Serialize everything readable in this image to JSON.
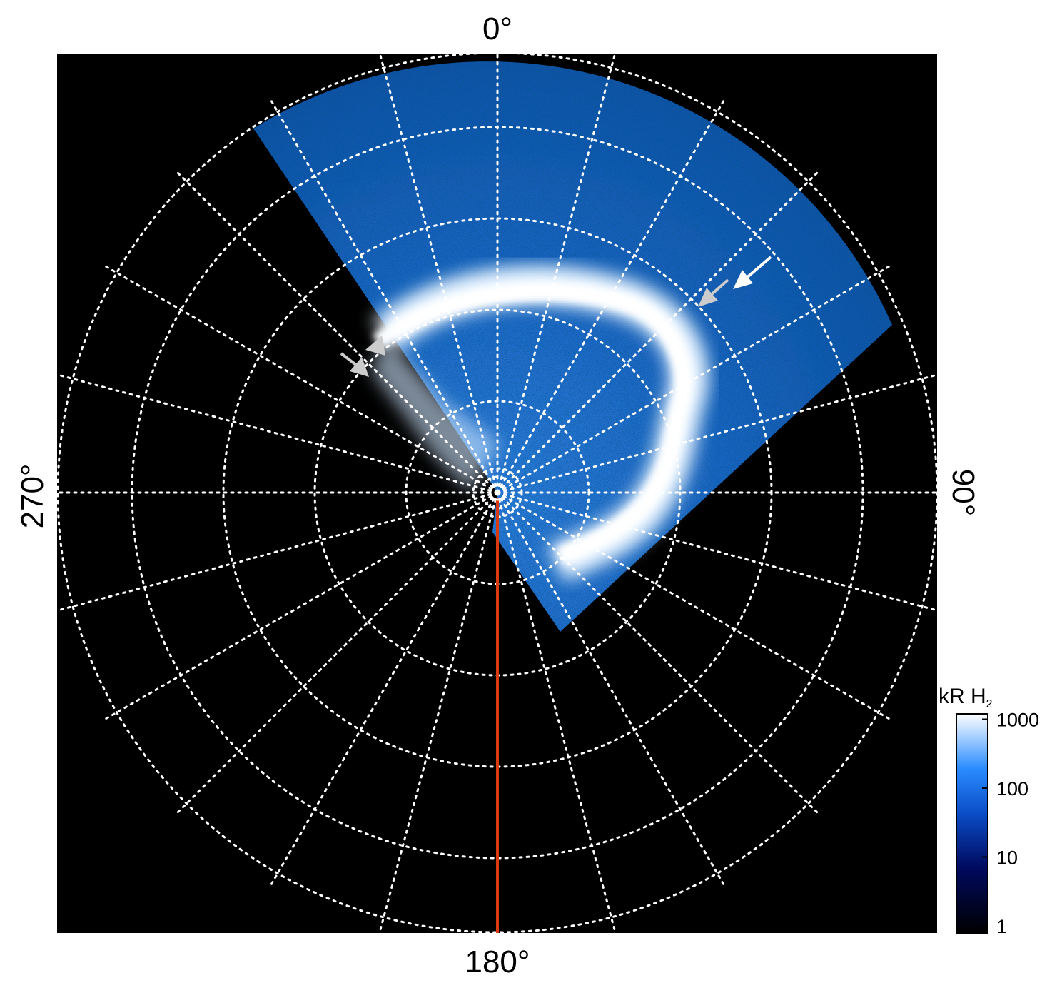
{
  "labels": {
    "top": "0°",
    "bottom": "180°",
    "left": "270°",
    "right": "90°"
  },
  "colorbar": {
    "title": "kR H",
    "title_sub": "2",
    "ticks": [
      1,
      10,
      100,
      1000
    ]
  }
}
